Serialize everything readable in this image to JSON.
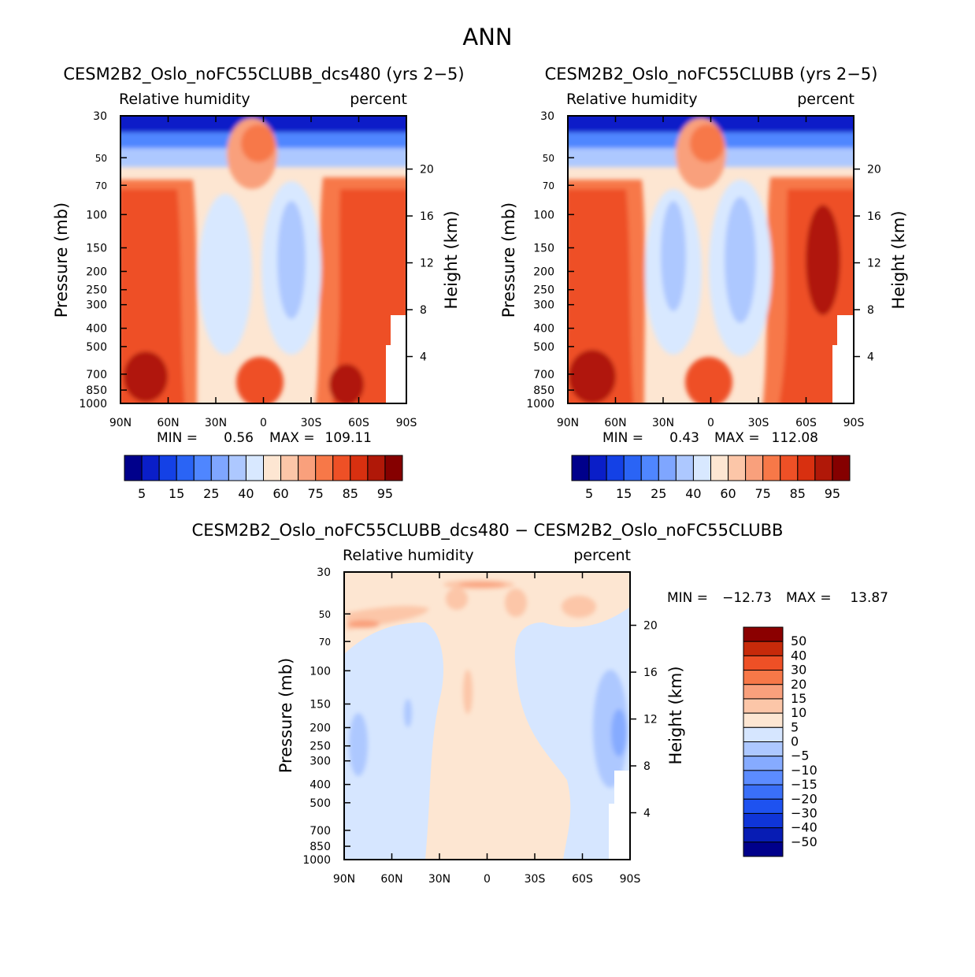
{
  "figure_title": "ANN",
  "colors": {
    "abs_levels": [
      "#00008b",
      "#0a1ec8",
      "#1441e6",
      "#2a64f5",
      "#4f86ff",
      "#7fa6ff",
      "#adc8ff",
      "#d8e8ff",
      "#fde6d2",
      "#fcc6a8",
      "#f9a07c",
      "#f77848",
      "#ee5026",
      "#d83010",
      "#b01808",
      "#850000"
    ],
    "diff_levels": [
      "#00008b",
      "#071cb4",
      "#0f35d8",
      "#1e52f0",
      "#3a6ff8",
      "#5c8cff",
      "#86abff",
      "#adc8ff",
      "#d6e6ff",
      "#fde6d2",
      "#fcc6a8",
      "#f9a07c",
      "#f77848",
      "#ee5026",
      "#c72a0a",
      "#8b0000"
    ]
  },
  "chart_data": [
    {
      "type": "heatmap",
      "id": "panel-test",
      "title": "CESM2B2_Oslo_noFC55CLUBB_dcs480 (yrs 2−5)",
      "subtitle_left": "Relative humidity",
      "subtitle_right": "percent",
      "ylabel": "Pressure (mb)",
      "ylabel_right": "Height (km)",
      "x_ticks": [
        "90N",
        "60N",
        "30N",
        "0",
        "30S",
        "60S",
        "90S"
      ],
      "x_range": [
        90,
        -90
      ],
      "y_ticks": [
        "30",
        "50",
        "70",
        "100",
        "150",
        "200",
        "250",
        "300",
        "400",
        "500",
        "700",
        "850",
        "1000"
      ],
      "y_range_mb": [
        30,
        1000
      ],
      "height_ticks": [
        "20",
        "16",
        "12",
        "8",
        "4"
      ],
      "min_label": "MIN =",
      "min_value": "0.56",
      "max_label": "MAX =",
      "max_value": "109.11",
      "colorbar_labels": [
        "5",
        "15",
        "25",
        "40",
        "60",
        "75",
        "85",
        "95"
      ]
    },
    {
      "type": "heatmap",
      "id": "panel-control",
      "title": "CESM2B2_Oslo_noFC55CLUBB (yrs 2−5)",
      "subtitle_left": "Relative humidity",
      "subtitle_right": "percent",
      "ylabel": "Pressure (mb)",
      "ylabel_right": "Height (km)",
      "x_ticks": [
        "90N",
        "60N",
        "30N",
        "0",
        "30S",
        "60S",
        "90S"
      ],
      "x_range": [
        90,
        -90
      ],
      "y_ticks": [
        "30",
        "50",
        "70",
        "100",
        "150",
        "200",
        "250",
        "300",
        "400",
        "500",
        "700",
        "850",
        "1000"
      ],
      "y_range_mb": [
        30,
        1000
      ],
      "height_ticks": [
        "20",
        "16",
        "12",
        "8",
        "4"
      ],
      "min_label": "MIN =",
      "min_value": "0.43",
      "max_label": "MAX =",
      "max_value": "112.08",
      "colorbar_labels": [
        "5",
        "15",
        "25",
        "40",
        "60",
        "75",
        "85",
        "95"
      ]
    },
    {
      "type": "heatmap",
      "id": "panel-diff",
      "title": "CESM2B2_Oslo_noFC55CLUBB_dcs480 − CESM2B2_Oslo_noFC55CLUBB",
      "subtitle_left": "Relative humidity",
      "subtitle_right": "percent",
      "ylabel": "Pressure (mb)",
      "ylabel_right": "Height (km)",
      "x_ticks": [
        "90N",
        "60N",
        "30N",
        "0",
        "30S",
        "60S",
        "90S"
      ],
      "x_range": [
        90,
        -90
      ],
      "y_ticks": [
        "30",
        "50",
        "70",
        "100",
        "150",
        "200",
        "250",
        "300",
        "400",
        "500",
        "700",
        "850",
        "1000"
      ],
      "y_range_mb": [
        30,
        1000
      ],
      "height_ticks": [
        "20",
        "16",
        "12",
        "8",
        "4"
      ],
      "min_label": "MIN =",
      "min_value": "−12.73",
      "max_label": "MAX =",
      "max_value": "13.87",
      "colorbar_labels": [
        "50",
        "40",
        "30",
        "20",
        "15",
        "10",
        "5",
        "0",
        "−5",
        "−10",
        "−15",
        "−20",
        "−30",
        "−40",
        "−50"
      ]
    }
  ]
}
